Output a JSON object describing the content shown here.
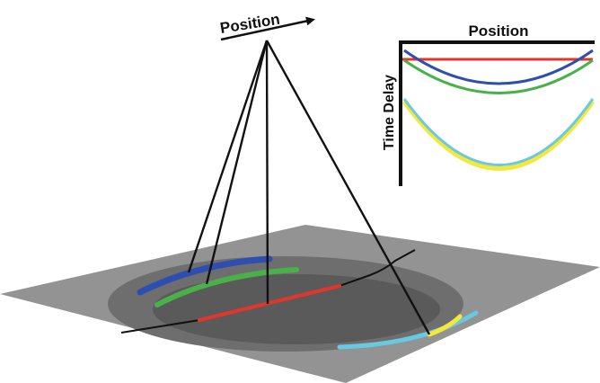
{
  "labels": {
    "source_position": "Position",
    "inset_x_axis": "Position",
    "inset_y_axis": "Time Delay"
  },
  "colors": {
    "plane": "#939393",
    "pit": "#6e6e6e",
    "pit_floor": "#5a5a5a",
    "blue": "#2f4fb0",
    "green": "#4ab04a",
    "red": "#e0362b",
    "yellow": "#f4e83a",
    "cyan": "#69c9e0",
    "ink": "#111111"
  },
  "inset_curves": [
    {
      "color_key": "red",
      "name": "red-curve"
    },
    {
      "color_key": "blue",
      "name": "blue-curve"
    },
    {
      "color_key": "green",
      "name": "green-curve"
    },
    {
      "color_key": "yellow",
      "name": "yellow-curve"
    },
    {
      "color_key": "cyan",
      "name": "cyan-curve"
    }
  ]
}
